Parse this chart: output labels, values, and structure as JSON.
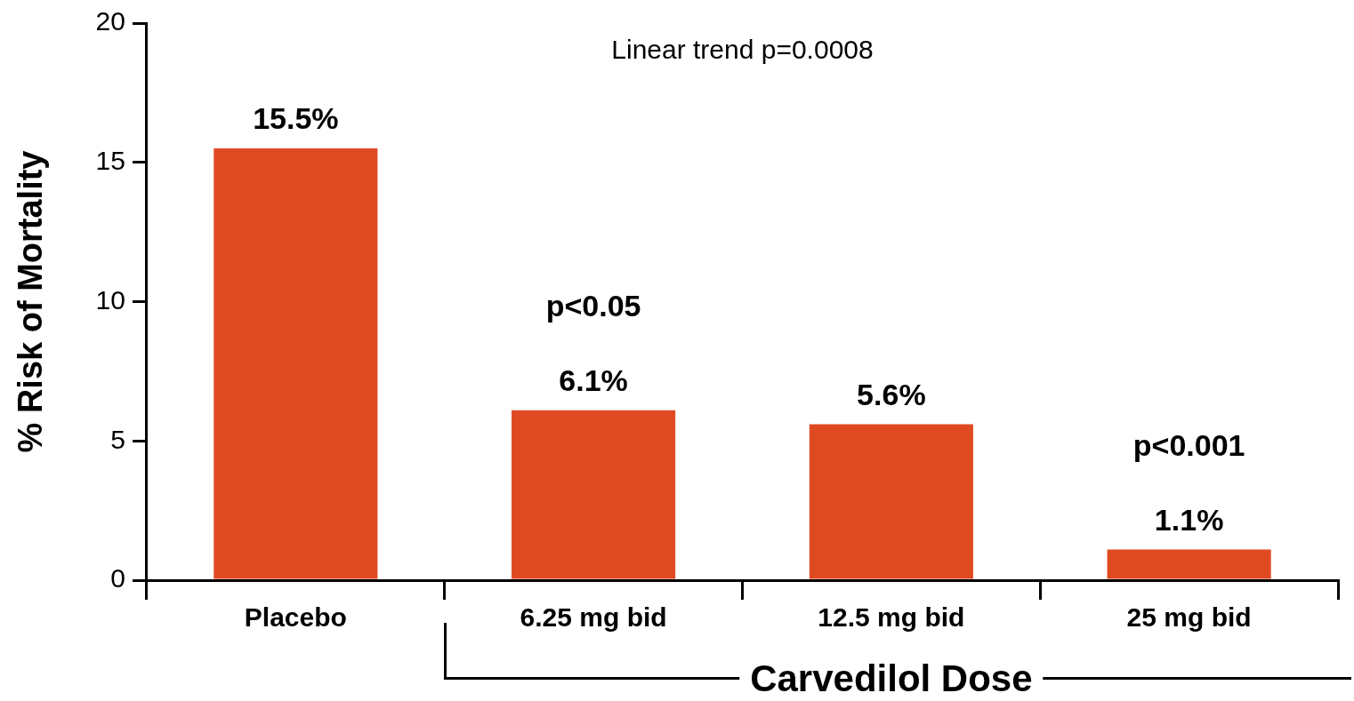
{
  "chart_data": {
    "type": "bar",
    "ylabel": "% Risk of Mortality",
    "xlabel": "Carvedilol Dose",
    "categories": [
      "Placebo",
      "6.25 mg bid",
      "12.5 mg bid",
      "25 mg bid"
    ],
    "values": [
      15.5,
      6.1,
      5.6,
      1.1
    ],
    "color": "#e04a23",
    "value_labels": [
      "15.5%",
      "6.1%",
      "5.6%",
      "1.1%"
    ],
    "ylim": [
      0,
      20
    ],
    "yticks": [
      0,
      5,
      10,
      15,
      20
    ],
    "grid": false,
    "legend": false,
    "annotations": [
      "Linear trend p=0.0008",
      "p<0.05",
      "p<0.001"
    ]
  }
}
